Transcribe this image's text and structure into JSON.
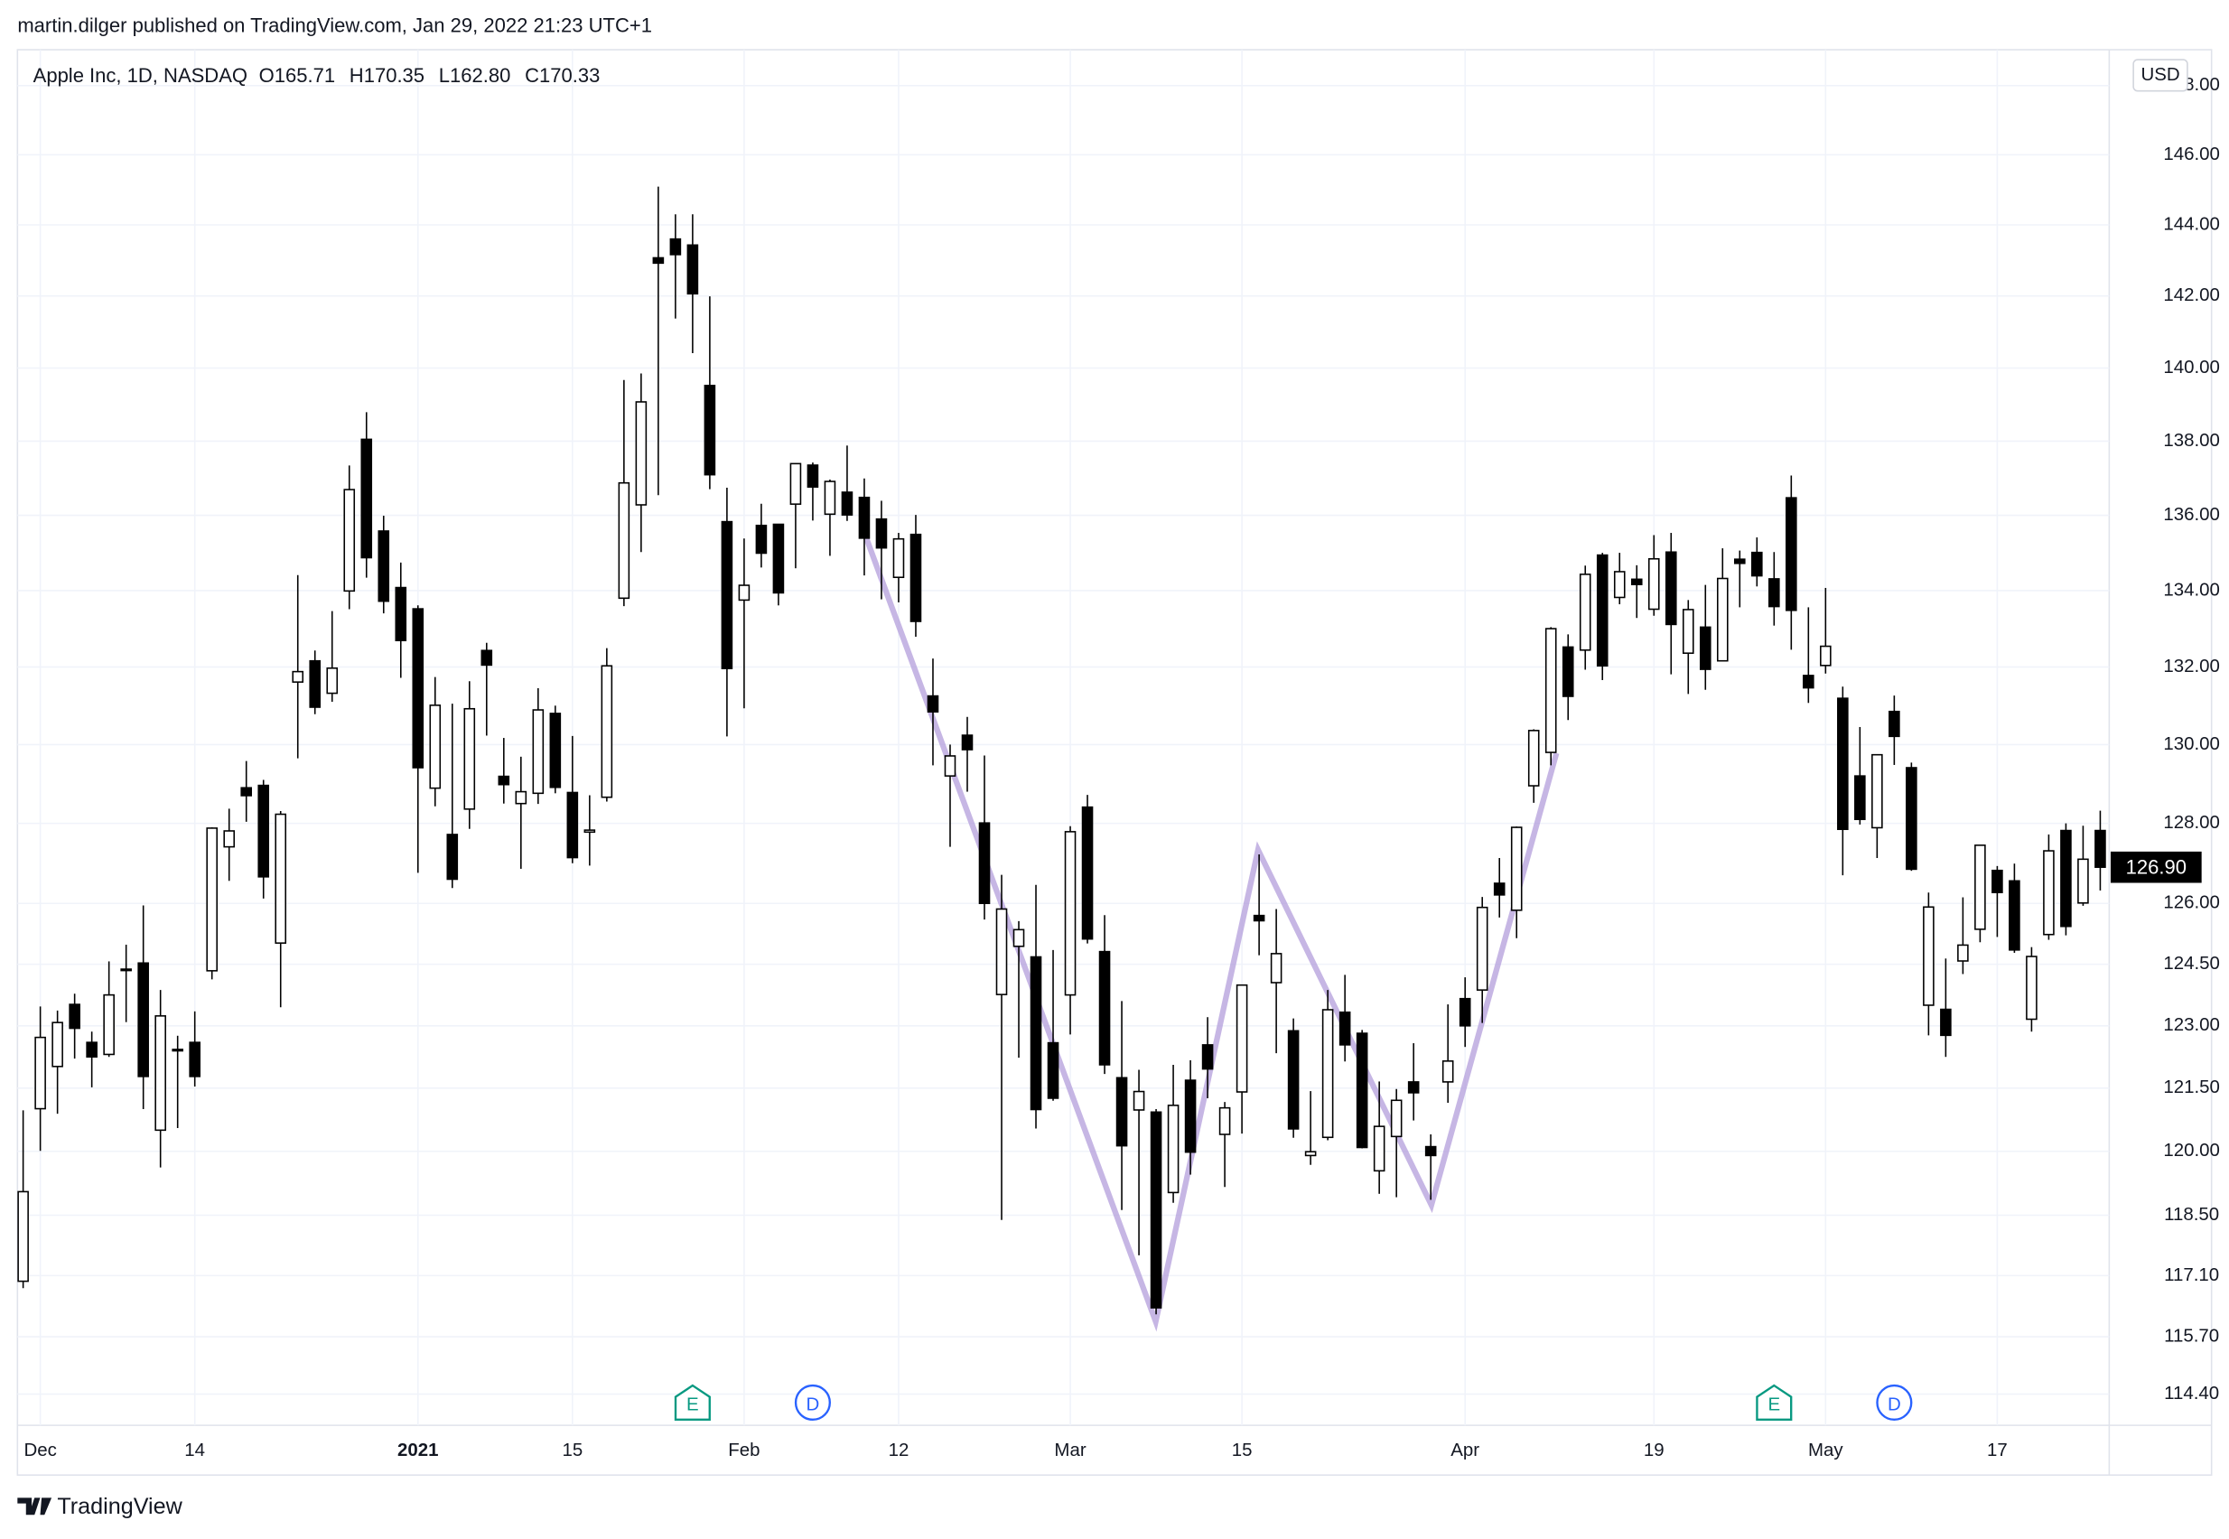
{
  "header": {
    "publisher": "martin.dilger published on TradingView.com, Jan 29, 2022 21:23 UTC+1"
  },
  "footer": {
    "brand": "TradingView"
  },
  "chart_data": {
    "type": "candlestick",
    "symbol": "Apple Inc, 1D, NASDAQ",
    "ohlc_legend": [
      "O165.71",
      "H170.35",
      "L162.80",
      "C170.33"
    ],
    "currency": "USD",
    "log_scale": true,
    "grid": true,
    "up_color": "#ffffff",
    "down_color": "#000000",
    "edge_color": "#000000",
    "last_price": {
      "value": 126.9,
      "label": "126.90"
    },
    "event_labels": [
      "E",
      "D",
      "E",
      "D"
    ],
    "event_colors": [
      "#089981",
      "#2962ff",
      "#089981",
      "#2962ff"
    ],
    "ylim": [
      113.7,
      149.05
    ],
    "yticks": [
      {
        "value": 114.4,
        "label": "114.40"
      },
      {
        "value": 115.7,
        "label": "115.70"
      },
      {
        "value": 117.1,
        "label": "117.10"
      },
      {
        "value": 118.5,
        "label": "118.50"
      },
      {
        "value": 120,
        "label": "120.00"
      },
      {
        "value": 121.5,
        "label": "121.50"
      },
      {
        "value": 123,
        "label": "123.00"
      },
      {
        "value": 124.5,
        "label": "124.50"
      },
      {
        "value": 126,
        "label": "126.00"
      },
      {
        "value": 128,
        "label": "128.00"
      },
      {
        "value": 130,
        "label": "130.00"
      },
      {
        "value": 132,
        "label": "132.00"
      },
      {
        "value": 134,
        "label": "134.00"
      },
      {
        "value": 136,
        "label": "136.00"
      },
      {
        "value": 138,
        "label": "138.00"
      },
      {
        "value": 140,
        "label": "140.00"
      },
      {
        "value": 142,
        "label": "142.00"
      },
      {
        "value": 144,
        "label": "144.00"
      },
      {
        "value": 146,
        "label": "146.00"
      },
      {
        "value": 148,
        "label": "148.00"
      }
    ],
    "categories": [
      null,
      "Dec",
      null,
      null,
      null,
      null,
      null,
      null,
      null,
      null,
      "14",
      null,
      null,
      null,
      null,
      null,
      null,
      null,
      null,
      null,
      null,
      null,
      null,
      "2021",
      null,
      null,
      null,
      null,
      null,
      null,
      null,
      null,
      "15",
      null,
      null,
      null,
      null,
      null,
      null,
      null,
      null,
      null,
      "Feb",
      null,
      null,
      null,
      null,
      null,
      null,
      null,
      null,
      "12",
      null,
      null,
      null,
      null,
      null,
      null,
      null,
      null,
      null,
      "Mar",
      null,
      null,
      null,
      null,
      null,
      null,
      null,
      null,
      null,
      "15",
      null,
      null,
      null,
      null,
      null,
      null,
      null,
      null,
      null,
      null,
      null,
      null,
      "Apr",
      null,
      null,
      null,
      null,
      null,
      null,
      null,
      null,
      null,
      null,
      "19",
      null,
      null,
      null,
      null,
      null,
      null,
      null,
      null,
      null,
      "May",
      null,
      null,
      null,
      null,
      null,
      null,
      null,
      null,
      null,
      "17",
      null,
      null,
      null,
      null,
      null,
      null
    ],
    "open": [
      116.97,
      121.01,
      122.02,
      123.52,
      122.6,
      122.31,
      124.37,
      124.53,
      120.5,
      122.43,
      122.6,
      124.34,
      127.41,
      128.9,
      128.96,
      125.02,
      131.61,
      132.16,
      131.32,
      133.99,
      138.05,
      135.58,
      134.08,
      133.52,
      128.89,
      127.72,
      128.36,
      132.43,
      129.19,
      128.5,
      128.76,
      130.8,
      128.78,
      127.78,
      128.66,
      133.8,
      136.28,
      143.07,
      143.6,
      143.43,
      139.52,
      135.83,
      133.75,
      135.73,
      135.76,
      136.3,
      137.35,
      136.03,
      136.62,
      136.48,
      135.9,
      134.35,
      135.49,
      131.25,
      129.2,
      130.24,
      128.01,
      123.76,
      124.94,
      124.68,
      122.59,
      123.75,
      128.41,
      124.81,
      121.75,
      120.98,
      120.93,
      119.03,
      121.69,
      122.54,
      120.4,
      121.41,
      125.7,
      124.05,
      122.88,
      119.9,
      120.33,
      123.33,
      122.82,
      119.54,
      120.35,
      121.65,
      120.11,
      121.65,
      123.66,
      123.87,
      126.5,
      125.83,
      128.95,
      129.8,
      132.52,
      132.44,
      134.94,
      133.82,
      134.3,
      133.51,
      135.02,
      132.36,
      133.04,
      132.16,
      134.83,
      135.01,
      134.31,
      136.47,
      131.78,
      132.04,
      131.19,
      129.2,
      127.89,
      130.85,
      129.41,
      123.5,
      123.4,
      124.58,
      125.36,
      126.82,
      126.56,
      123.16,
      125.23,
      127.82,
      126.01,
      127.82
    ],
    "high": [
      120.97,
      123.47,
      123.37,
      123.78,
      122.86,
      124.57,
      124.98,
      125.95,
      123.87,
      122.76,
      123.35,
      127.9,
      128.37,
      129.58,
      129.1,
      128.31,
      134.41,
      132.43,
      133.46,
      137.34,
      138.79,
      135.99,
      134.74,
      133.61,
      131.74,
      131.05,
      131.63,
      132.63,
      130.17,
      129.69,
      131.45,
      131,
      130.22,
      128.71,
      132.49,
      139.67,
      139.85,
      145.09,
      144.3,
      144.3,
      141.99,
      136.74,
      135.38,
      136.31,
      135.77,
      137.4,
      137.42,
      136.96,
      137.88,
      136.99,
      136.39,
      135.53,
      136.01,
      132.22,
      130,
      130.71,
      129.72,
      126.71,
      125.56,
      126.46,
      124.85,
      127.93,
      128.72,
      125.71,
      123.6,
      121.94,
      121,
      122.06,
      122.17,
      123.21,
      121.17,
      124,
      127.22,
      125.86,
      123.18,
      121.43,
      123.87,
      124.24,
      122.9,
      121.66,
      121.48,
      122.58,
      120.4,
      123.52,
      124.18,
      126.16,
      127.13,
      127.92,
      130.39,
      133.04,
      132.85,
      134.66,
      135,
      135,
      134.67,
      135.47,
      135.53,
      133.75,
      134.15,
      135.12,
      135.06,
      135.41,
      135.02,
      137.07,
      133.56,
      134.07,
      131.49,
      130.45,
      129.75,
      131.26,
      129.54,
      126.27,
      124.64,
      126.15,
      127.39,
      126.93,
      126.99,
      124.92,
      127.72,
      128,
      127.94,
      128.32
    ],
    "low": [
      116.81,
      120.01,
      120.89,
      122.21,
      121.52,
      122.25,
      123.09,
      121,
      119.62,
      120.55,
      121.54,
      124.13,
      126.56,
      128.04,
      126.12,
      123.45,
      129.65,
      130.78,
      131.1,
      133.51,
      134.34,
      133.4,
      131.72,
      126.76,
      128.43,
      126.38,
      127.86,
      130.23,
      128.5,
      126.86,
      128.49,
      128.76,
      127,
      126.94,
      128.55,
      133.59,
      135.02,
      136.54,
      141.37,
      140.41,
      136.7,
      130.21,
      130.93,
      134.61,
      133.61,
      134.59,
      135.86,
      134.92,
      135.85,
      134.4,
      133.77,
      133.69,
      132.79,
      129.47,
      127.41,
      128.8,
      125.6,
      118.39,
      122.23,
      120.54,
      121.2,
      122.79,
      125.01,
      121.84,
      118.62,
      117.57,
      116.21,
      118.79,
      119.45,
      121.26,
      119.16,
      120.42,
      124.72,
      122.34,
      120.32,
      119.68,
      120.26,
      122.14,
      120.07,
      119,
      118.92,
      120.73,
      118.86,
      121.15,
      122.49,
      123.07,
      125.65,
      125.14,
      128.52,
      129.47,
      130.63,
      131.93,
      131.66,
      133.64,
      133.28,
      133.34,
      131.81,
      131.3,
      131.41,
      132.16,
      133.56,
      134.11,
      133.08,
      132.45,
      131.07,
      131.83,
      126.7,
      127.97,
      127.13,
      129.48,
      126.81,
      122.77,
      122.25,
      124.26,
      125.04,
      125.17,
      124.78,
      122.86,
      125.1,
      125.21,
      125.94,
      126.32
    ],
    "close": [
      119.05,
      122.72,
      123.08,
      122.94,
      122.25,
      123.75,
      124.38,
      121.78,
      123.24,
      122.41,
      121.78,
      127.88,
      127.81,
      128.7,
      126.66,
      128.23,
      131.88,
      130.96,
      131.97,
      136.69,
      134.87,
      133.72,
      132.69,
      129.41,
      131.01,
      126.6,
      130.92,
      132.05,
      128.98,
      128.8,
      130.89,
      128.91,
      127.14,
      127.83,
      132.03,
      136.87,
      139.07,
      142.92,
      143.16,
      142.06,
      137.09,
      131.96,
      134.14,
      134.99,
      133.94,
      137.39,
      136.76,
      136.91,
      136.01,
      135.39,
      135.13,
      135.37,
      133.19,
      130.84,
      129.71,
      129.87,
      126,
      125.86,
      125.35,
      120.99,
      121.26,
      127.79,
      125.12,
      122.06,
      120.13,
      121.42,
      116.36,
      121.09,
      119.98,
      121.96,
      121.03,
      123.99,
      125.57,
      124.76,
      120.53,
      119.99,
      123.39,
      122.54,
      120.09,
      120.59,
      121.21,
      121.39,
      119.9,
      122.15,
      123,
      125.9,
      126.21,
      127.9,
      130.36,
      133,
      131.24,
      134.43,
      132.03,
      134.5,
      134.16,
      134.84,
      133.11,
      133.5,
      131.94,
      134.32,
      134.72,
      134.39,
      133.58,
      133.48,
      131.46,
      132.54,
      127.85,
      128.1,
      129.74,
      130.21,
      126.85,
      125.91,
      122.77,
      124.97,
      127.45,
      126.27,
      124.85,
      124.69,
      127.31,
      125.43,
      127.1,
      126.9
    ]
  }
}
